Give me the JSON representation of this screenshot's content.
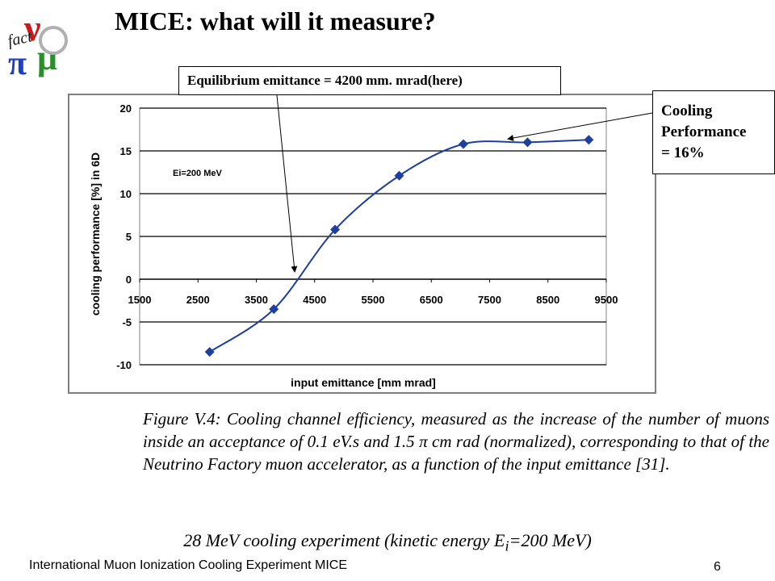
{
  "slide": {
    "title": "MICE: what will it measure?",
    "logo_letters": [
      "ν",
      "fact",
      "π",
      "μ"
    ],
    "callouts": {
      "equilibrium": "Equilibrium emittance = 4200 mm. mrad(here)",
      "cooling_line1": "Cooling",
      "cooling_line2": "Performance",
      "cooling_line3": "= 16%"
    },
    "caption": "Figure V.4: Cooling channel efficiency, measured as the increase of the number of muons inside an acceptance of 0.1 eV.s and 1.5 π  cm rad (normalized), corresponding to that of the Neutrino Factory muon accelerator, as a function of the input emittance [31].",
    "subcaption_main": "28 MeV cooling experiment (kinetic energy E",
    "subcaption_sub": "i",
    "subcaption_end": "=200 MeV)",
    "footer": "International Muon Ionization Cooling Experiment MICE",
    "page_number": "6"
  },
  "colors": {
    "series": "#1f3f9f",
    "frame_border": "#7f7f7f",
    "plot_border": "#808080",
    "gridline": "#000000"
  },
  "chart_data": {
    "type": "line",
    "title": "",
    "xlabel": "input emittance [mm mrad]",
    "ylabel": "cooling performance [%] in 6D",
    "xlim": [
      1500,
      9500
    ],
    "ylim": [
      -10,
      20
    ],
    "xticks": [
      1500,
      2500,
      3500,
      4500,
      5500,
      6500,
      7500,
      8500,
      9500
    ],
    "yticks": [
      -10,
      -5,
      0,
      5,
      10,
      15,
      20
    ],
    "grid": "horizontal",
    "annotation": "Ei=200 MeV",
    "series": [
      {
        "name": "",
        "x": [
          2700,
          3800,
          4850,
          5950,
          7050,
          8150,
          9200
        ],
        "y": [
          -8.5,
          -3.5,
          5.8,
          12.1,
          15.8,
          16.0,
          16.3
        ]
      }
    ]
  }
}
